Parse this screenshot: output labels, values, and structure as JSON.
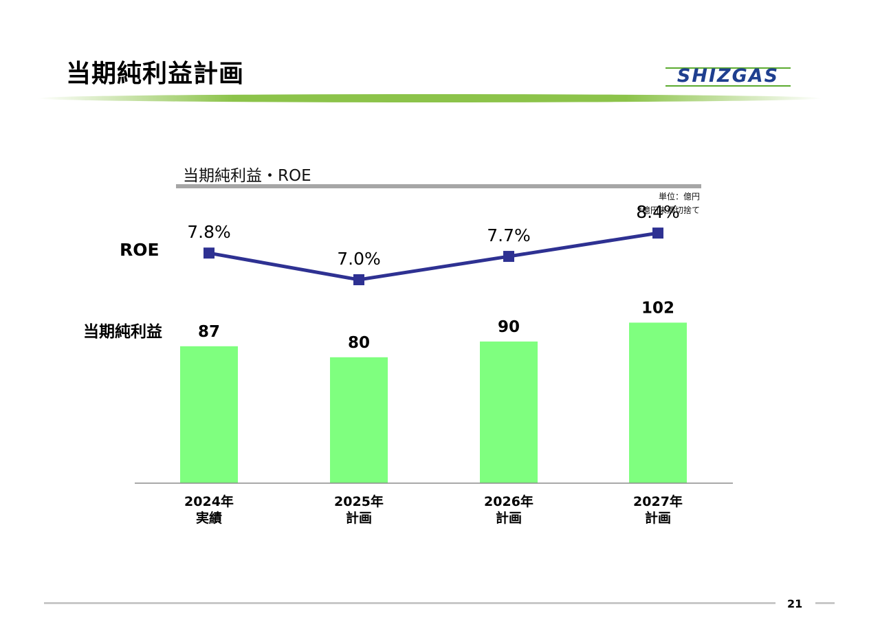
{
  "page": {
    "title": "当期純利益計画",
    "logo_text": "SHIZGAS",
    "page_number": "21",
    "colors": {
      "title_band": "#8cc34a",
      "logo": "#1f3f8f",
      "bar": "#7fff7f",
      "line": "#2e3192"
    }
  },
  "chart_header": {
    "subtitle": "当期純利益・ROE",
    "unit": "単位：億円",
    "note": "*億円未満切捨て"
  },
  "chart_data": {
    "type": "bar",
    "categories": [
      {
        "year": "2024年",
        "kind": "実績"
      },
      {
        "year": "2025年",
        "kind": "計画"
      },
      {
        "year": "2026年",
        "kind": "計画"
      },
      {
        "year": "2027年",
        "kind": "計画"
      }
    ],
    "series": [
      {
        "name": "当期純利益",
        "type": "bar",
        "values": [
          87,
          80,
          90,
          102
        ],
        "labels": [
          "87",
          "80",
          "90",
          "102"
        ],
        "color": "#7fff7f"
      },
      {
        "name": "ROE",
        "type": "line",
        "values": [
          7.8,
          7.0,
          7.7,
          8.4
        ],
        "labels": [
          "7.8%",
          "7.0%",
          "7.7%",
          "8.4%"
        ],
        "color": "#2e3192"
      }
    ],
    "legend": "left (series names beside first category)",
    "grid": false
  }
}
